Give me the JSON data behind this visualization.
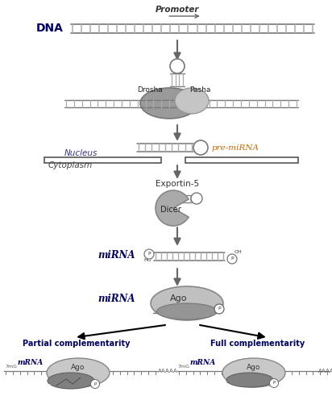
{
  "bg_color": "#ffffff",
  "dark_gray": "#666666",
  "mid_gray": "#999999",
  "light_gray": "#bbbbbb",
  "lighter_gray": "#d0d0d0",
  "dark_blue": "#000066",
  "orange_brown": "#cc6600",
  "promoter_text": "Promoter",
  "dna_text": "DNA",
  "drosha_text": "Drosha",
  "pasha_text": "Pasha",
  "premirna_text": "pre-miRNA",
  "nucleus_text": "Nucleus",
  "cytoplasm_text": "Cytoplasm",
  "exportin_text": "Exportin-5",
  "dicer_text": "Dicer",
  "mirna_text": "miRNA",
  "ago_text": "Ago",
  "partial_text": "Partial complementarity",
  "full_text": "Full complementarity",
  "mrna_text": "mRNA",
  "7mg_text": "7mG",
  "aaaaa_text": "AAAAA",
  "ho_text": "HO",
  "p_text": "P",
  "oh_text": "OH",
  "figw": 4.12,
  "figh": 5.12,
  "dpi": 100
}
